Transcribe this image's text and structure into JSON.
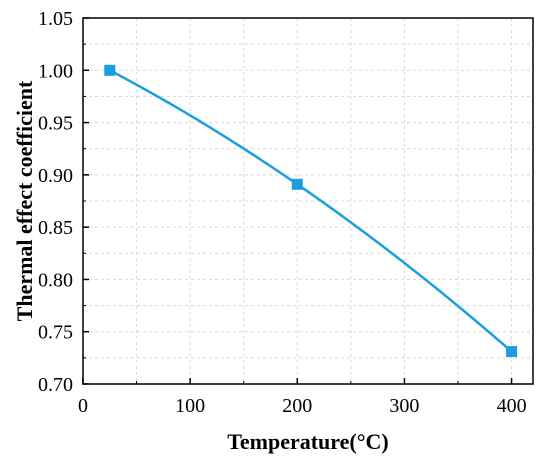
{
  "chart_data": {
    "type": "line",
    "title": "",
    "xlabel": "Temperature(°C)",
    "ylabel": "Thermal effect coefficient",
    "xlim": [
      0,
      420
    ],
    "ylim": [
      0.7,
      1.05
    ],
    "xticks": [
      0,
      100,
      200,
      300,
      400
    ],
    "yticks": [
      0.7,
      0.75,
      0.8,
      0.85,
      0.9,
      0.95,
      1.0,
      1.05
    ],
    "xtick_labels": [
      "0",
      "100",
      "200",
      "300",
      "400"
    ],
    "ytick_labels": [
      "0.70",
      "0.75",
      "0.80",
      "0.85",
      "0.90",
      "0.95",
      "1.00",
      "1.05"
    ],
    "grid": true,
    "series": [
      {
        "x": [
          25,
          200,
          400
        ],
        "y": [
          1.0,
          0.891,
          0.731
        ],
        "color": "#1a9ee0",
        "marker": "square"
      }
    ]
  }
}
